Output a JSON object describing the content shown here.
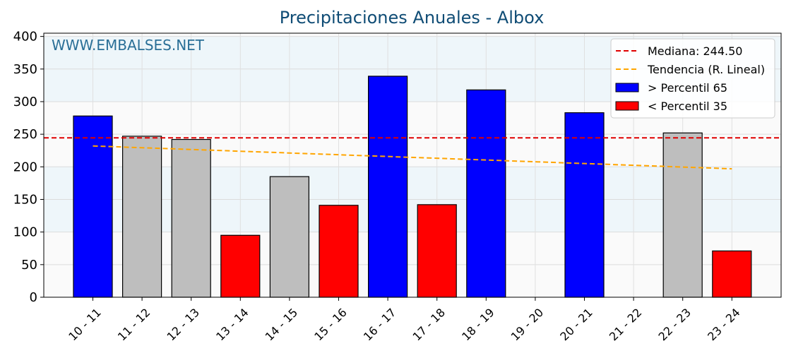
{
  "chart_data": {
    "type": "bar",
    "title": "Precipitaciones Anuales - Albox",
    "xlabel": "",
    "ylabel": "",
    "ylim": [
      0,
      405
    ],
    "yticks": [
      0,
      50,
      100,
      150,
      200,
      250,
      300,
      350,
      400
    ],
    "categories": [
      "10 - 11",
      "11 - 12",
      "12 - 13",
      "13 - 14",
      "14 - 15",
      "15 - 16",
      "16 - 17",
      "17 - 18",
      "18 - 19",
      "19 - 20",
      "20 - 21",
      "21 - 22",
      "22 - 23",
      "23 - 24"
    ],
    "values": [
      278,
      247,
      242,
      95,
      185,
      141,
      339,
      142,
      318,
      0,
      283,
      0,
      252,
      71
    ],
    "bar_groups": [
      "above",
      "mid",
      "mid",
      "below",
      "mid",
      "below",
      "above",
      "below",
      "above",
      "none",
      "above",
      "none",
      "mid",
      "below"
    ],
    "median": 244.5,
    "trend": [
      232,
      197
    ],
    "watermark": "WWW.EMBALSES.NET",
    "legend": {
      "position": "top-right",
      "entries": [
        {
          "label": "Mediana: 244.50",
          "kind": "line-dashed",
          "color": "#e00000"
        },
        {
          "label": "Tendencia (R. Lineal)",
          "kind": "line-dashed",
          "color": "#ffa500"
        },
        {
          "label": " > Percentil 65",
          "kind": "patch",
          "color": "#0000ff"
        },
        {
          "label": " < Percentil 35",
          "kind": "patch",
          "color": "#ff0000"
        }
      ]
    },
    "grid": true,
    "colors": {
      "above": "#0000ff",
      "below": "#ff0000",
      "mid": "#bebebe",
      "median": "#e00000",
      "trend": "#ffa500",
      "band_light": "#eef6fa",
      "band_plain": "#fafafa"
    }
  }
}
